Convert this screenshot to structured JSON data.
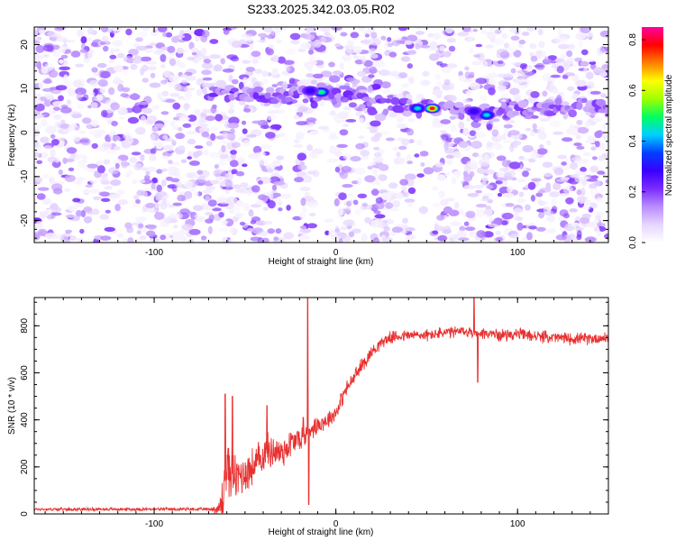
{
  "title": "S233.2025.342.03.05.R02",
  "colors": {
    "line": "#e83030",
    "frame": "#000000",
    "background": "#ffffff"
  },
  "chart_data": [
    {
      "type": "heatmap",
      "xlabel": "Height of straight line (km)",
      "ylabel": "Frequency (Hz)",
      "xlim": [
        -166,
        150
      ],
      "ylim": [
        -25,
        24
      ],
      "x_ticks": [
        -100,
        0,
        100
      ],
      "x_tick_labels": [
        "-100",
        "0",
        "100"
      ],
      "y_ticks": [
        -20,
        -10,
        0,
        10,
        20
      ],
      "y_tick_labels": [
        "-20",
        "-10",
        "0",
        "10",
        "20"
      ],
      "colorbar": {
        "label": "Normalized spectral amplitude",
        "range": [
          0.0,
          0.85
        ],
        "ticks": [
          0.0,
          0.2,
          0.4,
          0.6,
          0.8
        ],
        "tick_labels": [
          "0.0",
          "0.2",
          "0.4",
          "0.6",
          "0.8"
        ],
        "colormap": [
          "#ffffff",
          "#e6d6ff",
          "#b98cff",
          "#7a2cff",
          "#3a00ff",
          "#0040ff",
          "#00d0ff",
          "#00ff60",
          "#a0ff00",
          "#ffff00",
          "#ff8000",
          "#ff0000",
          "#ff00a0"
        ]
      },
      "ridge": {
        "description_points": [
          [
            -60,
            9
          ],
          [
            -18,
            8.5
          ],
          [
            -5,
            9
          ],
          [
            20,
            6.5
          ],
          [
            45,
            5.5
          ],
          [
            53,
            5.5
          ],
          [
            80,
            4.5
          ],
          [
            100,
            5.5
          ],
          [
            150,
            6
          ]
        ],
        "peaks": [
          {
            "x": 53,
            "y": 5.5,
            "value": 0.8
          },
          {
            "x": 45,
            "y": 5.5,
            "value": 0.45
          },
          {
            "x": 83,
            "y": 4.0,
            "value": 0.45
          },
          {
            "x": -8,
            "y": 9.2,
            "value": 0.5
          },
          {
            "x": -14,
            "y": 9.5,
            "value": 0.3
          },
          {
            "x": 76,
            "y": 4.8,
            "value": 0.3
          }
        ]
      }
    },
    {
      "type": "line",
      "xlabel": "Height of straight line (km)",
      "ylabel": "SNR (10 * v/v)",
      "xlim": [
        -166,
        150
      ],
      "ylim": [
        0,
        920
      ],
      "x_ticks": [
        -100,
        0,
        100
      ],
      "x_tick_labels": [
        "-100",
        "0",
        "100"
      ],
      "y_ticks": [
        0,
        200,
        400,
        600,
        800
      ],
      "y_tick_labels": [
        "0",
        "200",
        "400",
        "600",
        "800"
      ],
      "series": [
        {
          "trend_x": [
            -166,
            -70,
            -64,
            -62,
            -60,
            -55,
            -50,
            -45,
            -40,
            -35,
            -30,
            -25,
            -20,
            -17,
            -15,
            -12,
            -10,
            -5,
            0,
            5,
            10,
            15,
            20,
            25,
            30,
            40,
            50,
            60,
            70,
            80,
            90,
            100,
            110,
            120,
            130,
            140,
            150
          ],
          "trend_y": [
            20,
            20,
            20,
            80,
            200,
            150,
            180,
            200,
            250,
            270,
            260,
            300,
            320,
            330,
            360,
            370,
            380,
            400,
            430,
            520,
            580,
            640,
            690,
            730,
            750,
            760,
            760,
            770,
            775,
            770,
            760,
            765,
            755,
            750,
            745,
            745,
            750
          ],
          "noise_amplitude": [
            8,
            8,
            40,
            180,
            140,
            120,
            110,
            100,
            100,
            90,
            90,
            80,
            70,
            60,
            50,
            50,
            50,
            45,
            45,
            40,
            40,
            40,
            35,
            30,
            30,
            30,
            30,
            30,
            30,
            30,
            30,
            30,
            30,
            30,
            30,
            30,
            30
          ],
          "spikes": [
            {
              "x": -61,
              "y": 510
            },
            {
              "x": -57,
              "y": 500
            },
            {
              "x": -38,
              "y": 460
            },
            {
              "x": -18,
              "y": 410
            },
            {
              "x": -15.5,
              "y": 920
            },
            {
              "x": -15,
              "y": 40
            },
            {
              "x": 76,
              "y": 920
            },
            {
              "x": 78,
              "y": 560
            }
          ]
        }
      ]
    }
  ]
}
